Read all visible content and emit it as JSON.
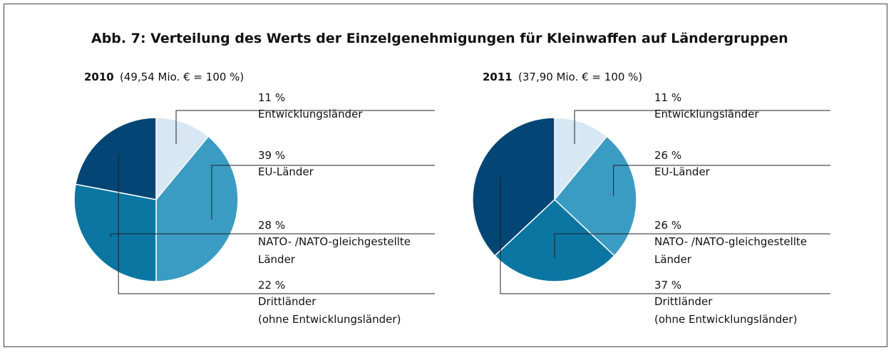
{
  "title": "Abb. 7: Verteilung des Werts der Einzelgenehmigungen für Kleinwaffen auf Ländergruppen",
  "chart_data": [
    {
      "type": "pie",
      "title": "2010",
      "subtitle": "(49,54 Mio. € = 100 %)",
      "categories": [
        "Entwicklungsländer",
        "EU-Länder",
        "NATO- /NATO-gleichgestellte\nLänder",
        "Drittländer\n(ohne Entwicklungsländer)"
      ],
      "values": [
        11,
        39,
        28,
        22
      ],
      "value_labels": [
        "11 %",
        "39 %",
        "28 %",
        "22 %"
      ],
      "colors": [
        "#d7e7f3",
        "#3b9cc3",
        "#0a76a1",
        "#034574"
      ]
    },
    {
      "type": "pie",
      "title": "2011",
      "subtitle": "(37,90 Mio. € = 100 %)",
      "categories": [
        "Entwicklungsländer",
        "EU-Länder",
        "NATO- /NATO-gleichgestellte\nLänder",
        "Drittländer\n(ohne Entwicklungsländer)"
      ],
      "values": [
        11,
        26,
        26,
        37
      ],
      "value_labels": [
        "11 %",
        "26 %",
        "26 %",
        "37 %"
      ],
      "colors": [
        "#d7e7f3",
        "#3b9cc3",
        "#0a76a1",
        "#034574"
      ]
    }
  ]
}
